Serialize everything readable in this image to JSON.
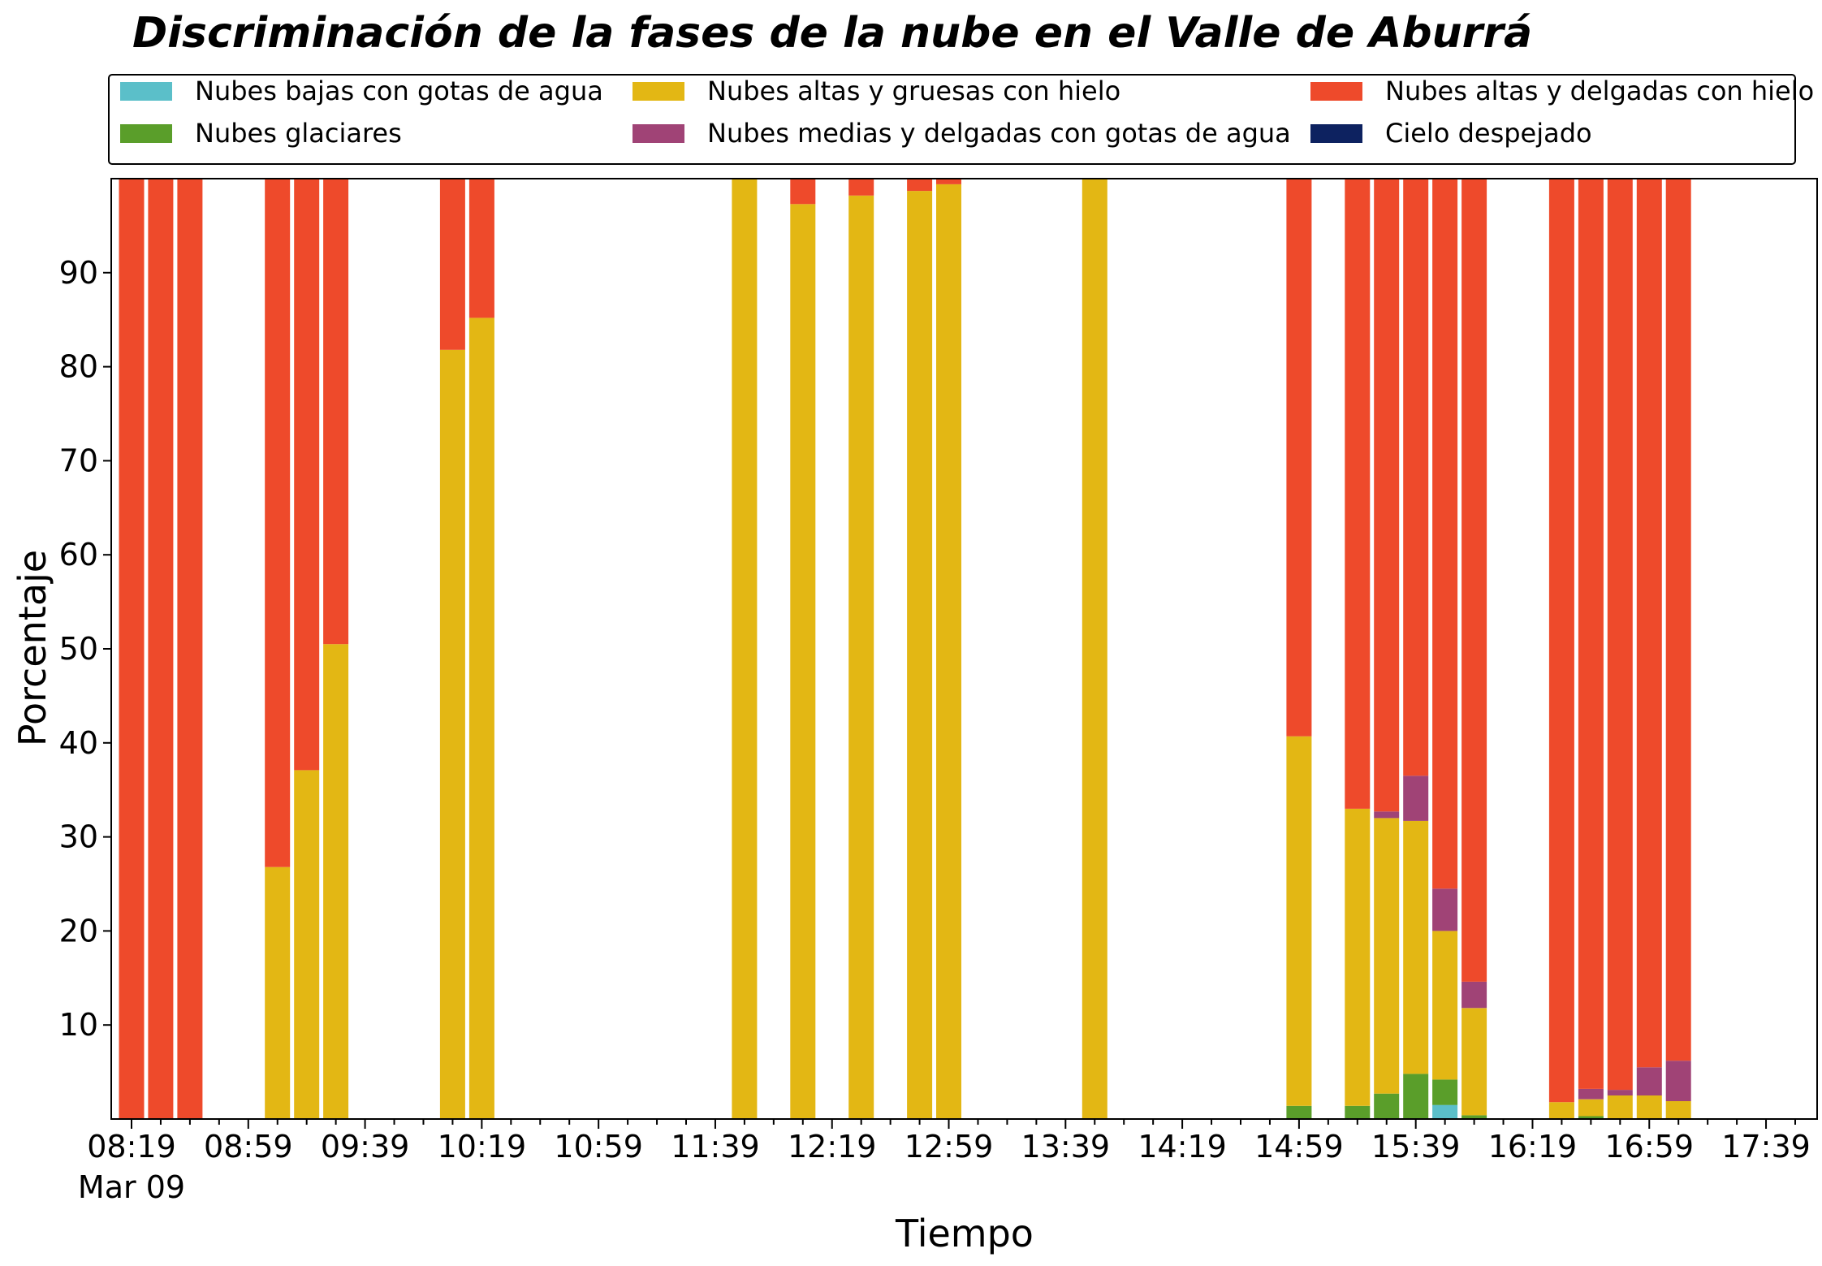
{
  "chart_data": {
    "type": "bar",
    "stacked": true,
    "title": "Discriminación de la fases de la nube en el Valle de Aburrá",
    "xlabel": "Tiempo",
    "ylabel": "Porcentaje",
    "ylim": [
      0,
      100
    ],
    "yticks": [
      10,
      20,
      30,
      40,
      50,
      60,
      70,
      80,
      90
    ],
    "grid": false,
    "legend_position": "top",
    "x_start": "08:19",
    "x_end": "17:49",
    "x_tick_labels": [
      "08:19",
      "08:59",
      "09:39",
      "10:19",
      "10:59",
      "11:39",
      "12:19",
      "12:59",
      "13:39",
      "14:19",
      "14:59",
      "15:39",
      "16:19",
      "16:59",
      "17:39"
    ],
    "x_date_label": "Mar 09",
    "x": [
      "08:19",
      "08:29",
      "08:39",
      "09:09",
      "09:19",
      "09:29",
      "10:09",
      "10:19",
      "11:49",
      "12:09",
      "12:29",
      "12:49",
      "12:59",
      "13:49",
      "14:59",
      "15:19",
      "15:29",
      "15:39",
      "15:49",
      "15:59",
      "16:29",
      "16:39",
      "16:49",
      "16:59",
      "17:09"
    ],
    "series": [
      {
        "name": "Nubes bajas con gotas de agua",
        "color": "#5bbfc9",
        "values": [
          0,
          0,
          0,
          0,
          0,
          0,
          0,
          0,
          0,
          0,
          0,
          0,
          0,
          0,
          0,
          0,
          0,
          0,
          1.5,
          0,
          0,
          0,
          0,
          0,
          0
        ]
      },
      {
        "name": "Nubes glaciares",
        "color": "#5a9e2a",
        "values": [
          0,
          0,
          0,
          0,
          0,
          0,
          0,
          0,
          0,
          0,
          0,
          0,
          0,
          0,
          1.4,
          1.4,
          2.7,
          4.8,
          2.7,
          0.4,
          0,
          0.3,
          0,
          0,
          0
        ]
      },
      {
        "name": "Nubes altas y gruesas con hielo",
        "color": "#e3b714",
        "values": [
          0,
          0,
          0,
          26.8,
          37.1,
          50.5,
          81.8,
          85.2,
          100,
          97.3,
          98.2,
          98.7,
          99.4,
          100,
          39.3,
          31.6,
          29.3,
          26.9,
          15.8,
          11.4,
          1.8,
          1.8,
          2.5,
          2.5,
          1.9
        ]
      },
      {
        "name": "Nubes medias y delgadas con gotas de agua",
        "color": "#a04376",
        "values": [
          0,
          0,
          0,
          0,
          0,
          0,
          0,
          0,
          0,
          0,
          0,
          0,
          0,
          0,
          0,
          0,
          0.7,
          4.8,
          4.5,
          2.8,
          0,
          1.1,
          0.6,
          3.0,
          4.3
        ]
      },
      {
        "name": "Nubes altas y delgadas con hielo",
        "color": "#ee4a2b",
        "values": [
          100,
          100,
          100,
          73.2,
          62.9,
          49.5,
          18.2,
          14.8,
          0,
          2.7,
          1.8,
          1.3,
          0.6,
          0,
          59.3,
          67.0,
          67.3,
          63.5,
          75.5,
          85.4,
          98.2,
          96.8,
          96.9,
          94.5,
          93.8
        ]
      },
      {
        "name": "Cielo despejado",
        "color": "#0d2260",
        "values": [
          0,
          0,
          0,
          0,
          0,
          0,
          0,
          0,
          0,
          0,
          0,
          0,
          0,
          0,
          0,
          0,
          0,
          0,
          0,
          0,
          0,
          0,
          0,
          0,
          0
        ]
      }
    ]
  }
}
